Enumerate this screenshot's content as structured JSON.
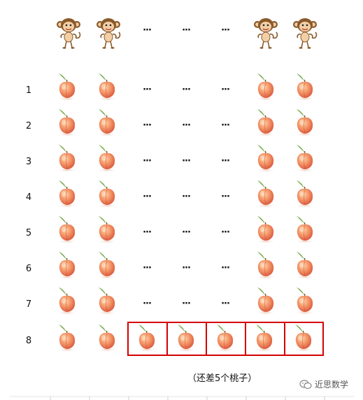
{
  "ellipsis": "···",
  "row_labels": [
    "1",
    "2",
    "3",
    "4",
    "5",
    "6",
    "7",
    "8"
  ],
  "caption": "（还差5个桃子）",
  "watermark": "近思数学",
  "colors": {
    "highlight_border": "#d40000",
    "peach": "#f08a5d",
    "leaf": "#4e8a2c"
  },
  "icons": {
    "monkey": "monkey-icon",
    "peach": "peach-icon",
    "watermark": "wechat-icon"
  }
}
